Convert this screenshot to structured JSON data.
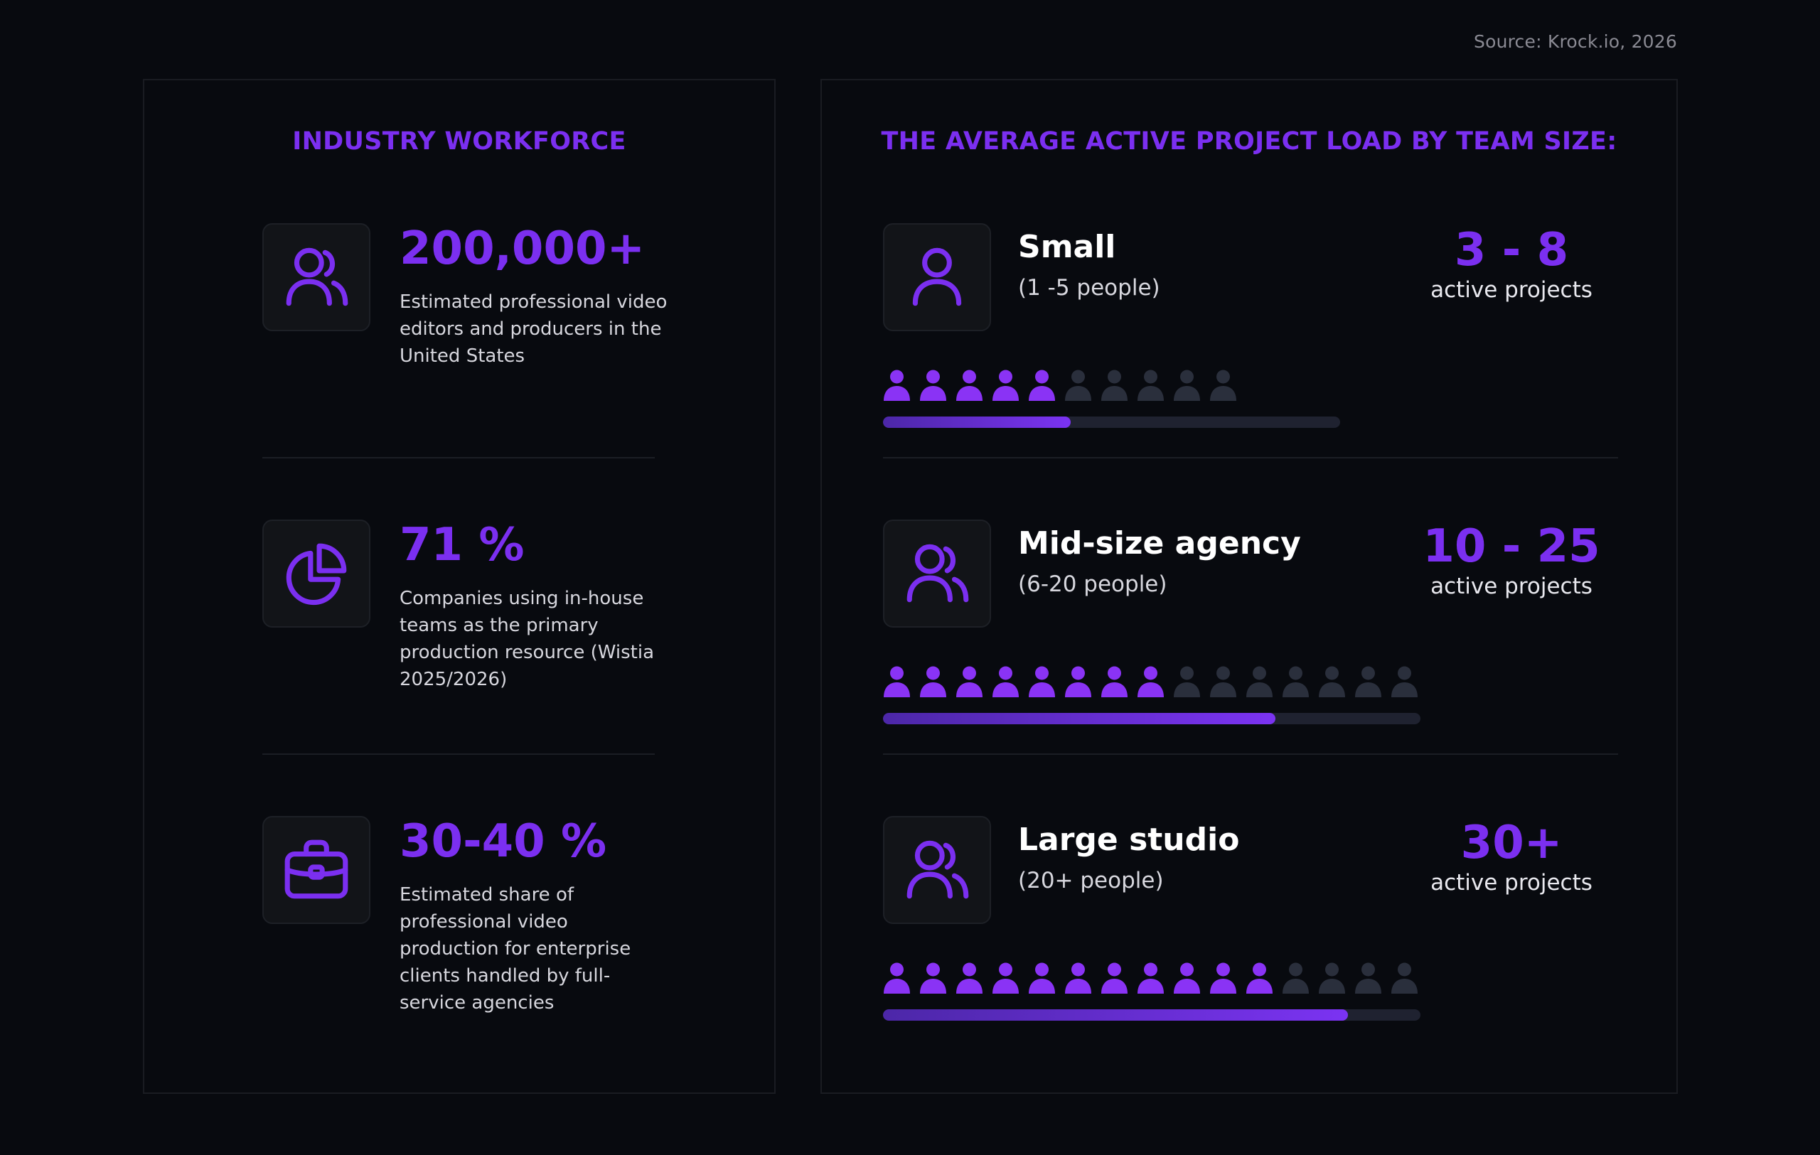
{
  "source": "Source: Krock.io, 2026",
  "colors": {
    "accent": "#7b2ff0",
    "background": "#080a0f",
    "person_active": "#8a33f5",
    "person_inactive": "#2a2f3c"
  },
  "left_panel": {
    "title": "INDUSTRY WORKFORCE",
    "stats": [
      {
        "icon": "users-icon",
        "value": "200,000+",
        "description": "Estimated professional video editors and producers in the United States"
      },
      {
        "icon": "pie-chart-icon",
        "value": "71 %",
        "description": "Companies using in-house teams as the primary production resource (Wistia 2025/2026)"
      },
      {
        "icon": "briefcase-icon",
        "value": "30-40 %",
        "description": "Estimated share of professional video production for enterprise clients handled by full-service agencies"
      }
    ]
  },
  "right_panel": {
    "title": "THE AVERAGE ACTIVE PROJECT LOAD BY TEAM SIZE:",
    "tiers": [
      {
        "icon": "user-icon",
        "name": "Small",
        "people": "(1 -5 people)",
        "range": "3 - 8",
        "unit": "active projects",
        "people_total": 10,
        "people_active": 5,
        "bar_fill": 0.41
      },
      {
        "icon": "users-icon",
        "name": "Mid-size agency",
        "people": "(6-20 people)",
        "range": "10 - 25",
        "unit": "active projects",
        "people_total": 15,
        "people_active": 8,
        "bar_fill": 0.73
      },
      {
        "icon": "users-icon",
        "name": "Large studio",
        "people": "(20+ people)",
        "range": "30+",
        "unit": "active projects",
        "people_total": 15,
        "people_active": 11,
        "bar_fill": 0.865
      }
    ]
  }
}
